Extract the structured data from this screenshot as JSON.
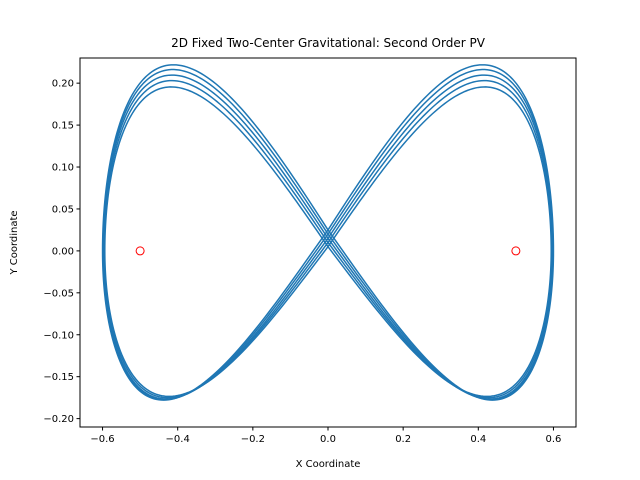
{
  "chart_data": {
    "type": "line",
    "title": "2D Fixed Two-Center Gravitational: Second Order PV",
    "xlabel": "X Coordinate",
    "ylabel": "Y Coordinate",
    "xlim": [
      -0.66,
      0.66
    ],
    "ylim": [
      -0.21,
      0.23
    ],
    "xticks": [
      -0.6,
      -0.4,
      -0.2,
      0.0,
      0.2,
      0.4,
      0.6
    ],
    "xtick_labels": [
      "−0.6",
      "−0.4",
      "−0.2",
      "0.0",
      "0.2",
      "0.4",
      "0.6"
    ],
    "yticks": [
      -0.2,
      -0.15,
      -0.1,
      -0.05,
      0.0,
      0.05,
      0.1,
      0.15,
      0.2
    ],
    "ytick_labels": [
      "−0.20",
      "−0.15",
      "−0.10",
      "−0.05",
      "0.00",
      "0.05",
      "0.10",
      "0.15",
      "0.20"
    ],
    "grid": false,
    "series": [
      {
        "kind": "trajectory",
        "color": "#1f77b4",
        "loops": [
          {
            "x_max": 0.594,
            "y_top": 0.193,
            "y_bottom": -0.176,
            "y_cross": 0.005
          },
          {
            "x_max": 0.596,
            "y_top": 0.198,
            "y_bottom": -0.18,
            "y_cross": 0.01
          },
          {
            "x_max": 0.598,
            "y_top": 0.202,
            "y_bottom": -0.184,
            "y_cross": 0.015
          },
          {
            "x_max": 0.599,
            "y_top": 0.206,
            "y_bottom": -0.187,
            "y_cross": 0.02
          },
          {
            "x_max": 0.6,
            "y_top": 0.209,
            "y_bottom": -0.19,
            "y_cross": 0.025
          }
        ]
      },
      {
        "kind": "centers",
        "marker": "open-circle",
        "color": "#ff0000",
        "points": [
          {
            "x": -0.5,
            "y": 0.0
          },
          {
            "x": 0.5,
            "y": 0.0
          }
        ]
      }
    ]
  }
}
